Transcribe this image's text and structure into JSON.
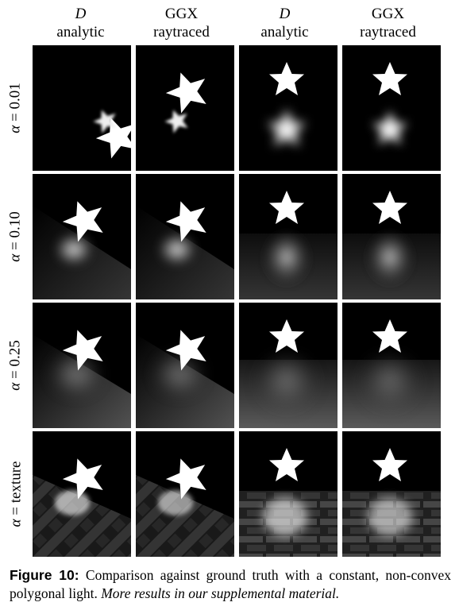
{
  "columns": [
    {
      "symbol": "D",
      "label": "analytic"
    },
    {
      "symbol": "GGX",
      "label": "raytraced"
    },
    {
      "symbol": "D",
      "label": "analytic"
    },
    {
      "symbol": "GGX",
      "label": "raytraced"
    }
  ],
  "rows": [
    {
      "alpha_symbol": "α",
      "value": "= 0.01"
    },
    {
      "alpha_symbol": "α",
      "value": "= 0.10"
    },
    {
      "alpha_symbol": "α",
      "value": "= 0.25"
    },
    {
      "alpha_symbol": "α",
      "value": "= texture"
    }
  ],
  "caption": {
    "figure_label": "Figure 10:",
    "text": "Comparison against ground truth with a constant, non-convex polygonal light.",
    "italic_text": "More results in our supplemental material."
  }
}
